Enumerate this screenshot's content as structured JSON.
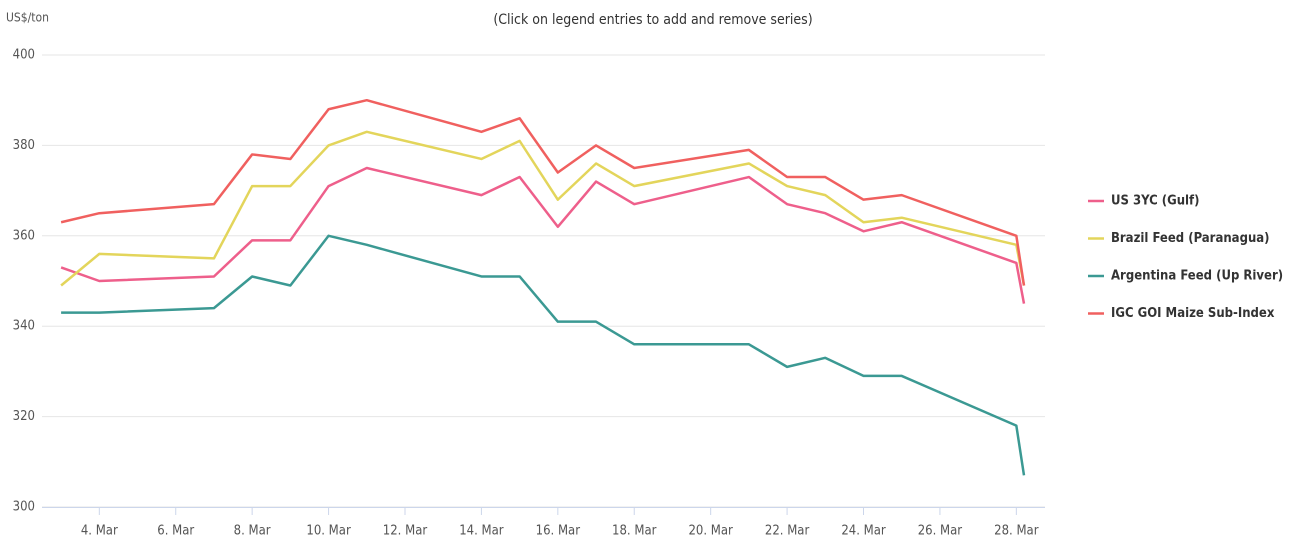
{
  "chart_data": {
    "type": "line",
    "y_label": "US$/ton",
    "subtitle": "(Click on legend entries to add and remove series)",
    "x": [
      3,
      4,
      7,
      8,
      9,
      10,
      11,
      14,
      15,
      16,
      17,
      18,
      21,
      22,
      23,
      24,
      25,
      28,
      28.2
    ],
    "xlim": [
      2.5,
      28.75
    ],
    "xticks": [
      {
        "value": 4,
        "label": "4. Mar"
      },
      {
        "value": 6,
        "label": "6. Mar"
      },
      {
        "value": 8,
        "label": "8. Mar"
      },
      {
        "value": 10,
        "label": "10. Mar"
      },
      {
        "value": 12,
        "label": "12. Mar"
      },
      {
        "value": 14,
        "label": "14. Mar"
      },
      {
        "value": 16,
        "label": "16. Mar"
      },
      {
        "value": 18,
        "label": "18. Mar"
      },
      {
        "value": 20,
        "label": "20. Mar"
      },
      {
        "value": 22,
        "label": "22. Mar"
      },
      {
        "value": 24,
        "label": "24. Mar"
      },
      {
        "value": 26,
        "label": "26. Mar"
      },
      {
        "value": 28,
        "label": "28. Mar"
      }
    ],
    "ylim": [
      300,
      400
    ],
    "yticks": [
      300,
      320,
      340,
      360,
      380,
      400
    ],
    "grid": true,
    "legend": "right",
    "series": [
      {
        "name": "US 3YC (Gulf)",
        "color": "#ee5f8b",
        "values": [
          353,
          350,
          351,
          359,
          359,
          371,
          375,
          369,
          373,
          362,
          372,
          367,
          373,
          367,
          365,
          361,
          363,
          354,
          345
        ]
      },
      {
        "name": "Brazil Feed (Paranagua)",
        "color": "#e3d55b",
        "values": [
          349,
          356,
          355,
          371,
          371,
          380,
          383,
          377,
          381,
          368,
          376,
          371,
          376,
          371,
          369,
          363,
          364,
          358,
          349
        ]
      },
      {
        "name": "Argentina Feed (Up River)",
        "color": "#3b9993",
        "values": [
          343,
          343,
          344,
          351,
          349,
          360,
          358,
          351,
          351,
          341,
          341,
          336,
          336,
          331,
          333,
          329,
          329,
          318,
          307
        ]
      },
      {
        "name": "IGC GOI Maize Sub-Index",
        "color": "#f0605f",
        "values": [
          363,
          365,
          367,
          378,
          377,
          388,
          390,
          383,
          386,
          374,
          380,
          375,
          379,
          373,
          373,
          368,
          369,
          360,
          349
        ]
      }
    ]
  }
}
